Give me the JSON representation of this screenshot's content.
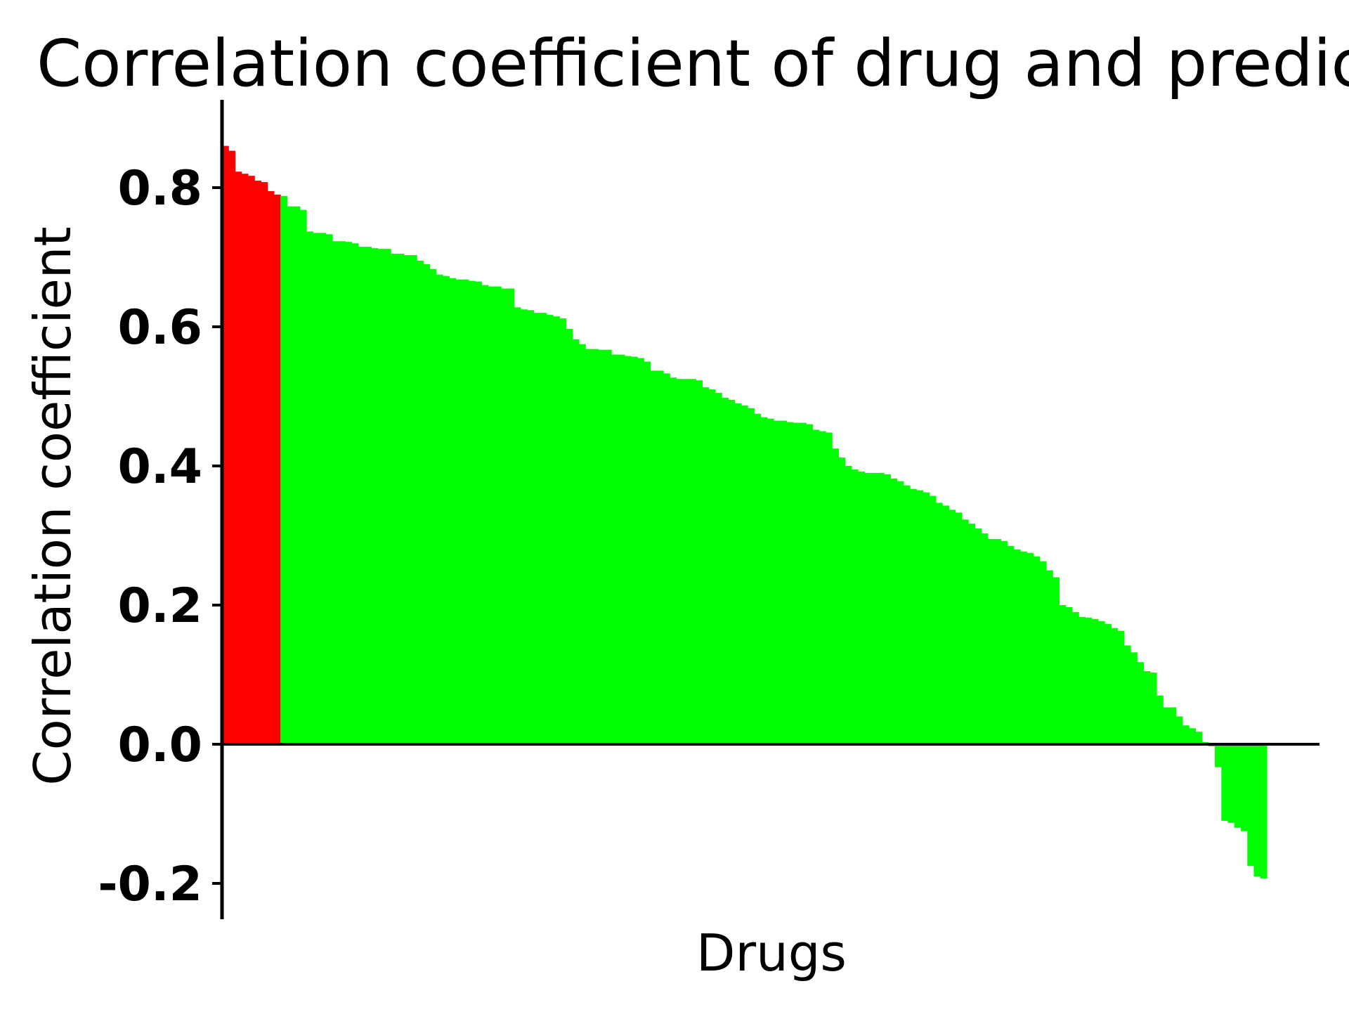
{
  "chart_data": {
    "type": "bar",
    "title": "Correlation coefficient of drug and predic",
    "xlabel": "Drugs",
    "ylabel": "Correlation coefficient",
    "ylim": [
      -0.25,
      0.92
    ],
    "yticks": [
      {
        "value": 0.8,
        "label": "0.8"
      },
      {
        "value": 0.6,
        "label": "0.6"
      },
      {
        "value": 0.4,
        "label": "0.4"
      },
      {
        "value": 0.2,
        "label": "0.2"
      },
      {
        "value": 0.0,
        "label": "0.0"
      },
      {
        "value": -0.2,
        "label": "-0.2"
      }
    ],
    "grid": false,
    "colors": {
      "top": "#ff0000",
      "other": "#00ff00"
    },
    "top_count": 9,
    "values": [
      0.86,
      0.853,
      0.823,
      0.82,
      0.817,
      0.81,
      0.808,
      0.795,
      0.79,
      0.788,
      0.773,
      0.773,
      0.768,
      0.737,
      0.735,
      0.735,
      0.733,
      0.723,
      0.723,
      0.722,
      0.72,
      0.715,
      0.715,
      0.713,
      0.712,
      0.712,
      0.705,
      0.705,
      0.703,
      0.703,
      0.695,
      0.69,
      0.683,
      0.675,
      0.673,
      0.67,
      0.668,
      0.668,
      0.666,
      0.665,
      0.66,
      0.658,
      0.658,
      0.655,
      0.655,
      0.628,
      0.625,
      0.624,
      0.62,
      0.62,
      0.617,
      0.615,
      0.612,
      0.597,
      0.582,
      0.575,
      0.568,
      0.568,
      0.567,
      0.567,
      0.56,
      0.56,
      0.558,
      0.557,
      0.555,
      0.55,
      0.537,
      0.537,
      0.533,
      0.527,
      0.525,
      0.525,
      0.525,
      0.523,
      0.513,
      0.51,
      0.505,
      0.498,
      0.495,
      0.49,
      0.487,
      0.483,
      0.475,
      0.47,
      0.468,
      0.465,
      0.465,
      0.463,
      0.462,
      0.462,
      0.46,
      0.452,
      0.45,
      0.448,
      0.425,
      0.412,
      0.4,
      0.395,
      0.392,
      0.39,
      0.39,
      0.39,
      0.388,
      0.382,
      0.378,
      0.372,
      0.367,
      0.365,
      0.362,
      0.357,
      0.347,
      0.343,
      0.337,
      0.333,
      0.323,
      0.317,
      0.31,
      0.303,
      0.295,
      0.295,
      0.292,
      0.285,
      0.28,
      0.277,
      0.275,
      0.27,
      0.263,
      0.25,
      0.24,
      0.2,
      0.197,
      0.19,
      0.183,
      0.182,
      0.18,
      0.177,
      0.173,
      0.167,
      0.163,
      0.142,
      0.132,
      0.118,
      0.105,
      0.103,
      0.07,
      0.053,
      0.053,
      0.04,
      0.027,
      0.023,
      0.018,
      0.003,
      -0.003,
      -0.033,
      -0.11,
      -0.113,
      -0.12,
      -0.125,
      -0.175,
      -0.19,
      -0.193
    ]
  }
}
